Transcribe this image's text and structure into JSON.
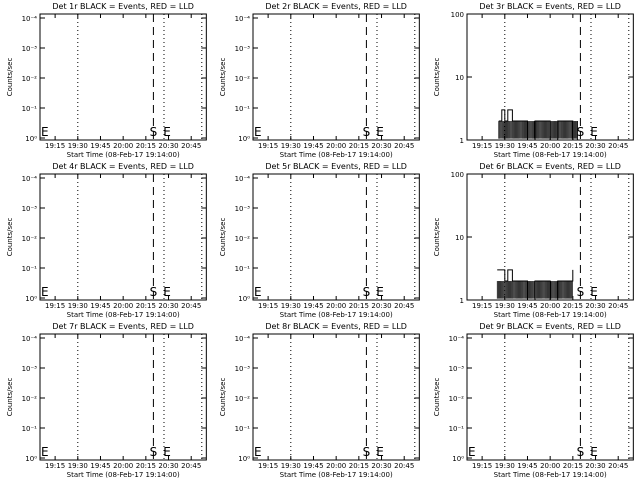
{
  "colors": {
    "background": "#ffffff",
    "axes": "#000000",
    "events_black": "#000000",
    "lld_red": "#ff0000"
  },
  "common": {
    "x_ticks": [
      "19:15",
      "19:30",
      "19:45",
      "20:00",
      "20:15",
      "20:30",
      "20:45"
    ],
    "x_tick_minutes": [
      1155,
      1170,
      1185,
      1200,
      1215,
      1230,
      1245
    ],
    "x_range_minutes": [
      1145,
      1255
    ],
    "xlabel": "Start Time (08-Feb-17 19:14:00)",
    "ylabel": "Counts/sec",
    "dotted_lines_minutes": [
      1170,
      1227,
      1252
    ],
    "dashed_line_minutes": 1220,
    "s_marker_minutes": 1220,
    "e_marker_minutes": 1229,
    "s_text": "S",
    "e_text": "E",
    "e_left_text": "E"
  },
  "chart_data": [
    {
      "panel": 1,
      "type": "line",
      "title": "Det 1r BLACK = Events, RED = LLD",
      "yscale": "log",
      "ylim": [
        0.5,
        0.0001
      ],
      "yticks": [
        "10⁰",
        "10⁻¹",
        "10⁻²",
        "10⁻³",
        "10⁻⁴"
      ],
      "series": []
    },
    {
      "panel": 2,
      "type": "line",
      "title": "Det 2r BLACK = Events, RED = LLD",
      "yscale": "log",
      "ylim": [
        0.5,
        0.0001
      ],
      "yticks": [
        "10⁰",
        "10⁻¹",
        "10⁻²",
        "10⁻³",
        "10⁻⁴"
      ],
      "series": []
    },
    {
      "panel": 3,
      "type": "line",
      "title": "Det 3r BLACK = Events, RED = LLD",
      "yscale": "log",
      "ylim": [
        1,
        100
      ],
      "yticks": [
        "1",
        "10",
        "100"
      ],
      "series": [
        {
          "x": [
            1166,
            1168,
            1170,
            1172,
            1175,
            1180,
            1185,
            1190,
            1195,
            1200,
            1205,
            1210,
            1215,
            1218
          ],
          "y": [
            2,
            3,
            2,
            3,
            2,
            2,
            1,
            2,
            2,
            1,
            2,
            2,
            1,
            2
          ]
        }
      ]
    },
    {
      "panel": 4,
      "type": "line",
      "title": "Det 4r BLACK = Events, RED = LLD",
      "yscale": "log",
      "ylim": [
        0.5,
        0.0001
      ],
      "yticks": [
        "10⁰",
        "10⁻¹",
        "10⁻²",
        "10⁻³",
        "10⁻⁴"
      ],
      "series": []
    },
    {
      "panel": 5,
      "type": "line",
      "title": "Det 5r BLACK = Events, RED = LLD",
      "yscale": "log",
      "ylim": [
        0.5,
        0.0001
      ],
      "yticks": [
        "10⁰",
        "10⁻¹",
        "10⁻²",
        "10⁻³",
        "10⁻⁴"
      ],
      "series": []
    },
    {
      "panel": 6,
      "type": "line",
      "title": "Det 6r BLACK = Events, RED = LLD",
      "yscale": "log",
      "ylim": [
        1,
        100
      ],
      "yticks": [
        "1",
        "10",
        "100"
      ],
      "series": [
        {
          "x": [
            1165,
            1168,
            1170,
            1172,
            1175,
            1180,
            1185,
            1190,
            1195,
            1200,
            1205,
            1210,
            1215
          ],
          "y": [
            3,
            3,
            2,
            3,
            2,
            2,
            1,
            2,
            2,
            1,
            2,
            2,
            3
          ]
        }
      ]
    },
    {
      "panel": 7,
      "type": "line",
      "title": "Det 7r BLACK = Events, RED = LLD",
      "yscale": "log",
      "ylim": [
        0.5,
        0.0001
      ],
      "yticks": [
        "10⁰",
        "10⁻¹",
        "10⁻²",
        "10⁻³",
        "10⁻⁴"
      ],
      "series": []
    },
    {
      "panel": 8,
      "type": "line",
      "title": "Det 8r BLACK = Events, RED = LLD",
      "yscale": "log",
      "ylim": [
        0.5,
        0.0001
      ],
      "yticks": [
        "10⁰",
        "10⁻¹",
        "10⁻²",
        "10⁻³",
        "10⁻⁴"
      ],
      "series": []
    },
    {
      "panel": 9,
      "type": "line",
      "title": "Det 9r BLACK = Events, RED = LLD",
      "yscale": "log",
      "ylim": [
        0.5,
        0.0001
      ],
      "yticks": [
        "10⁰",
        "10⁻¹",
        "10⁻²",
        "10⁻³",
        "10⁻⁴"
      ],
      "series": []
    }
  ]
}
